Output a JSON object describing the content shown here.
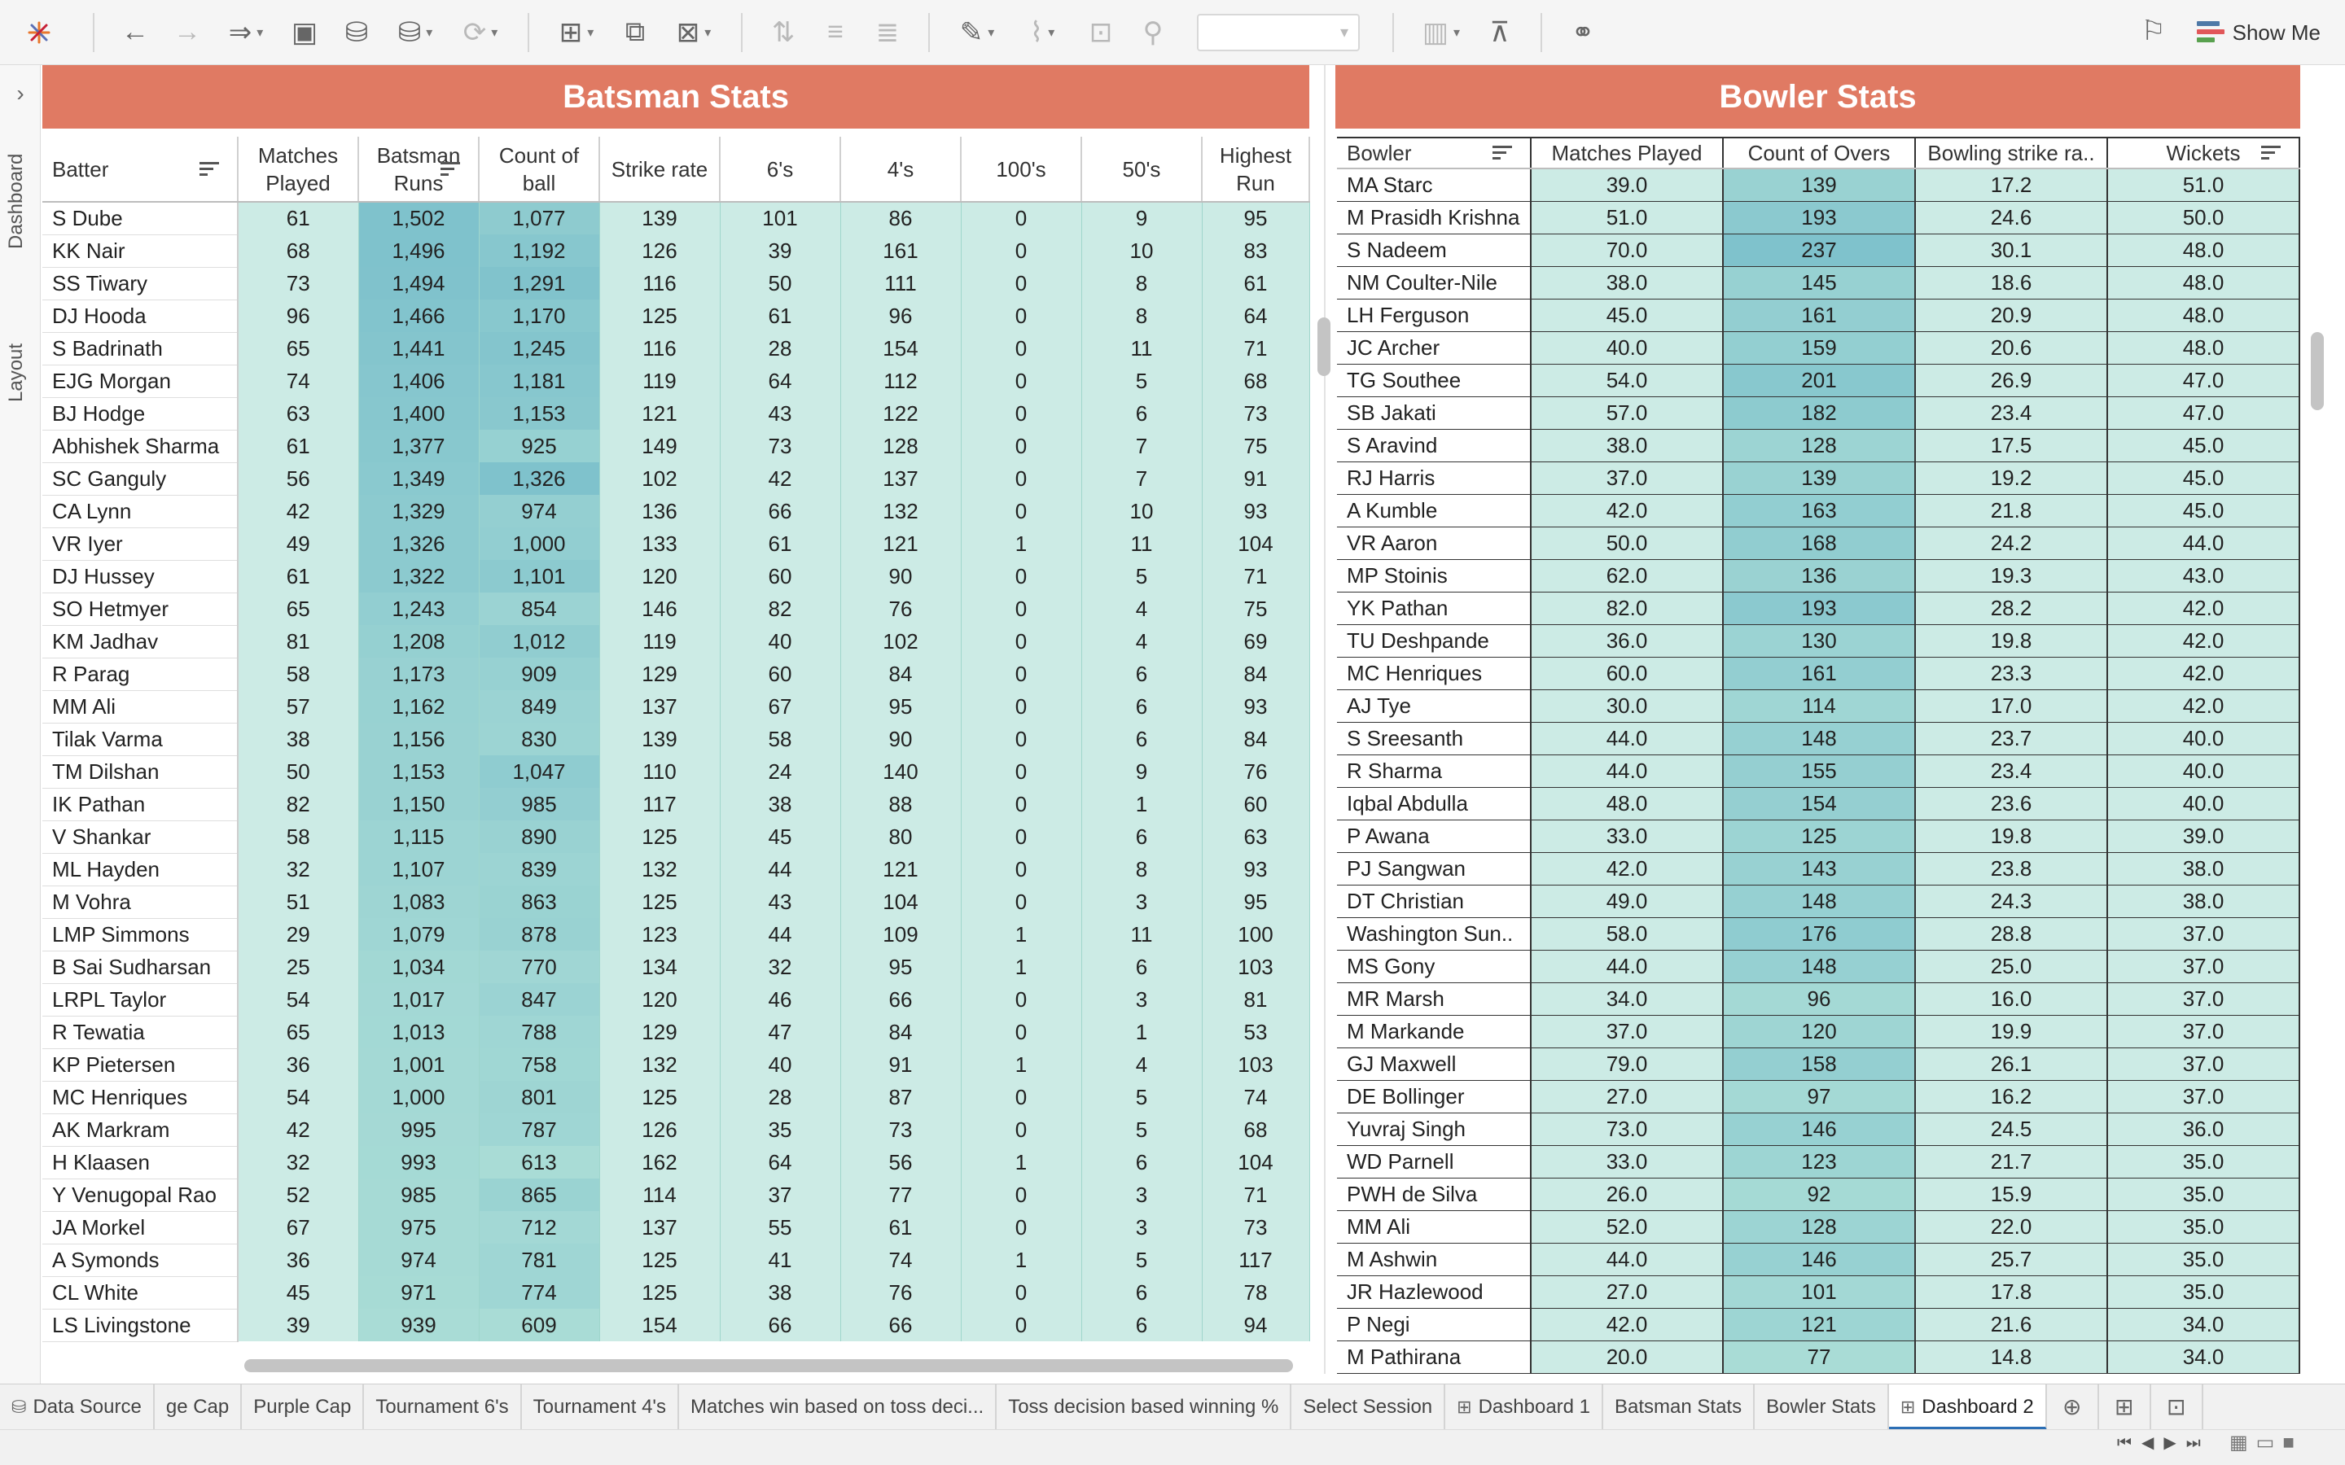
{
  "toolbar": {
    "show_me_label": "Show Me",
    "bar_colors": [
      "#4e79a7",
      "#e15759",
      "#59a14f"
    ]
  },
  "left_rail": {
    "dashboard_label": "Dashboard",
    "layout_label": "Layout"
  },
  "batsman": {
    "title": "Batsman Stats",
    "columns": [
      "Batter",
      "Matches Played",
      "Batsman Runs",
      "Count of ball",
      "Strike rate",
      "6's",
      "4's",
      "100's",
      "50's",
      "Highest Run"
    ],
    "rows": [
      [
        "S Dube",
        "61",
        "1,502",
        "1,077",
        "139",
        "101",
        "86",
        "0",
        "9",
        "95"
      ],
      [
        "KK Nair",
        "68",
        "1,496",
        "1,192",
        "126",
        "39",
        "161",
        "0",
        "10",
        "83"
      ],
      [
        "SS Tiwary",
        "73",
        "1,494",
        "1,291",
        "116",
        "50",
        "111",
        "0",
        "8",
        "61"
      ],
      [
        "DJ Hooda",
        "96",
        "1,466",
        "1,170",
        "125",
        "61",
        "96",
        "0",
        "8",
        "64"
      ],
      [
        "S Badrinath",
        "65",
        "1,441",
        "1,245",
        "116",
        "28",
        "154",
        "0",
        "11",
        "71"
      ],
      [
        "EJG Morgan",
        "74",
        "1,406",
        "1,181",
        "119",
        "64",
        "112",
        "0",
        "5",
        "68"
      ],
      [
        "BJ Hodge",
        "63",
        "1,400",
        "1,153",
        "121",
        "43",
        "122",
        "0",
        "6",
        "73"
      ],
      [
        "Abhishek Sharma",
        "61",
        "1,377",
        "925",
        "149",
        "73",
        "128",
        "0",
        "7",
        "75"
      ],
      [
        "SC Ganguly",
        "56",
        "1,349",
        "1,326",
        "102",
        "42",
        "137",
        "0",
        "7",
        "91"
      ],
      [
        "CA Lynn",
        "42",
        "1,329",
        "974",
        "136",
        "66",
        "132",
        "0",
        "10",
        "93"
      ],
      [
        "VR Iyer",
        "49",
        "1,326",
        "1,000",
        "133",
        "61",
        "121",
        "1",
        "11",
        "104"
      ],
      [
        "DJ Hussey",
        "61",
        "1,322",
        "1,101",
        "120",
        "60",
        "90",
        "0",
        "5",
        "71"
      ],
      [
        "SO Hetmyer",
        "65",
        "1,243",
        "854",
        "146",
        "82",
        "76",
        "0",
        "4",
        "75"
      ],
      [
        "KM Jadhav",
        "81",
        "1,208",
        "1,012",
        "119",
        "40",
        "102",
        "0",
        "4",
        "69"
      ],
      [
        "R Parag",
        "58",
        "1,173",
        "909",
        "129",
        "60",
        "84",
        "0",
        "6",
        "84"
      ],
      [
        "MM Ali",
        "57",
        "1,162",
        "849",
        "137",
        "67",
        "95",
        "0",
        "6",
        "93"
      ],
      [
        "Tilak Varma",
        "38",
        "1,156",
        "830",
        "139",
        "58",
        "90",
        "0",
        "6",
        "84"
      ],
      [
        "TM Dilshan",
        "50",
        "1,153",
        "1,047",
        "110",
        "24",
        "140",
        "0",
        "9",
        "76"
      ],
      [
        "IK Pathan",
        "82",
        "1,150",
        "985",
        "117",
        "38",
        "88",
        "0",
        "1",
        "60"
      ],
      [
        "V Shankar",
        "58",
        "1,115",
        "890",
        "125",
        "45",
        "80",
        "0",
        "6",
        "63"
      ],
      [
        "ML Hayden",
        "32",
        "1,107",
        "839",
        "132",
        "44",
        "121",
        "0",
        "8",
        "93"
      ],
      [
        "M Vohra",
        "51",
        "1,083",
        "863",
        "125",
        "43",
        "104",
        "0",
        "3",
        "95"
      ],
      [
        "LMP Simmons",
        "29",
        "1,079",
        "878",
        "123",
        "44",
        "109",
        "1",
        "11",
        "100"
      ],
      [
        "B Sai Sudharsan",
        "25",
        "1,034",
        "770",
        "134",
        "32",
        "95",
        "1",
        "6",
        "103"
      ],
      [
        "LRPL Taylor",
        "54",
        "1,017",
        "847",
        "120",
        "46",
        "66",
        "0",
        "3",
        "81"
      ],
      [
        "R Tewatia",
        "65",
        "1,013",
        "788",
        "129",
        "47",
        "84",
        "0",
        "1",
        "53"
      ],
      [
        "KP Pietersen",
        "36",
        "1,001",
        "758",
        "132",
        "40",
        "91",
        "1",
        "4",
        "103"
      ],
      [
        "MC Henriques",
        "54",
        "1,000",
        "801",
        "125",
        "28",
        "87",
        "0",
        "5",
        "74"
      ],
      [
        "AK Markram",
        "42",
        "995",
        "787",
        "126",
        "35",
        "73",
        "0",
        "5",
        "68"
      ],
      [
        "H Klaasen",
        "32",
        "993",
        "613",
        "162",
        "64",
        "56",
        "1",
        "6",
        "104"
      ],
      [
        "Y Venugopal Rao",
        "52",
        "985",
        "865",
        "114",
        "37",
        "77",
        "0",
        "3",
        "71"
      ],
      [
        "JA Morkel",
        "67",
        "975",
        "712",
        "137",
        "55",
        "61",
        "0",
        "3",
        "73"
      ],
      [
        "A Symonds",
        "36",
        "974",
        "781",
        "125",
        "41",
        "74",
        "1",
        "5",
        "117"
      ],
      [
        "CL White",
        "45",
        "971",
        "774",
        "125",
        "38",
        "76",
        "0",
        "6",
        "78"
      ],
      [
        "LS Livingstone",
        "39",
        "939",
        "609",
        "154",
        "66",
        "66",
        "0",
        "6",
        "94"
      ]
    ]
  },
  "bowler": {
    "title": "Bowler Stats",
    "columns": [
      "Bowler",
      "Matches Played",
      "Count of Overs",
      "Bowling strike ra..",
      "Wickets"
    ],
    "rows": [
      [
        "MA Starc",
        "39.0",
        "139",
        "17.2",
        "51.0"
      ],
      [
        "M Prasidh Krishna",
        "51.0",
        "193",
        "24.6",
        "50.0"
      ],
      [
        "S Nadeem",
        "70.0",
        "237",
        "30.1",
        "48.0"
      ],
      [
        "NM Coulter-Nile",
        "38.0",
        "145",
        "18.6",
        "48.0"
      ],
      [
        "LH Ferguson",
        "45.0",
        "161",
        "20.9",
        "48.0"
      ],
      [
        "JC Archer",
        "40.0",
        "159",
        "20.6",
        "48.0"
      ],
      [
        "TG Southee",
        "54.0",
        "201",
        "26.9",
        "47.0"
      ],
      [
        "SB Jakati",
        "57.0",
        "182",
        "23.4",
        "47.0"
      ],
      [
        "S Aravind",
        "38.0",
        "128",
        "17.5",
        "45.0"
      ],
      [
        "RJ Harris",
        "37.0",
        "139",
        "19.2",
        "45.0"
      ],
      [
        "A Kumble",
        "42.0",
        "163",
        "21.8",
        "45.0"
      ],
      [
        "VR Aaron",
        "50.0",
        "168",
        "24.2",
        "44.0"
      ],
      [
        "MP Stoinis",
        "62.0",
        "136",
        "19.3",
        "43.0"
      ],
      [
        "YK Pathan",
        "82.0",
        "193",
        "28.2",
        "42.0"
      ],
      [
        "TU Deshpande",
        "36.0",
        "130",
        "19.8",
        "42.0"
      ],
      [
        "MC Henriques",
        "60.0",
        "161",
        "23.3",
        "42.0"
      ],
      [
        "AJ Tye",
        "30.0",
        "114",
        "17.0",
        "42.0"
      ],
      [
        "S Sreesanth",
        "44.0",
        "148",
        "23.7",
        "40.0"
      ],
      [
        "R Sharma",
        "44.0",
        "155",
        "23.4",
        "40.0"
      ],
      [
        "Iqbal Abdulla",
        "48.0",
        "154",
        "23.6",
        "40.0"
      ],
      [
        "P Awana",
        "33.0",
        "125",
        "19.8",
        "39.0"
      ],
      [
        "PJ Sangwan",
        "42.0",
        "143",
        "23.8",
        "38.0"
      ],
      [
        "DT Christian",
        "49.0",
        "148",
        "24.3",
        "38.0"
      ],
      [
        "Washington Sun..",
        "58.0",
        "176",
        "28.8",
        "37.0"
      ],
      [
        "MS Gony",
        "44.0",
        "148",
        "25.0",
        "37.0"
      ],
      [
        "MR Marsh",
        "34.0",
        "96",
        "16.0",
        "37.0"
      ],
      [
        "M Markande",
        "37.0",
        "120",
        "19.9",
        "37.0"
      ],
      [
        "GJ Maxwell",
        "79.0",
        "158",
        "26.1",
        "37.0"
      ],
      [
        "DE Bollinger",
        "27.0",
        "97",
        "16.2",
        "37.0"
      ],
      [
        "Yuvraj Singh",
        "73.0",
        "146",
        "24.5",
        "36.0"
      ],
      [
        "WD Parnell",
        "33.0",
        "123",
        "21.7",
        "35.0"
      ],
      [
        "PWH de Silva",
        "26.0",
        "92",
        "15.9",
        "35.0"
      ],
      [
        "MM Ali",
        "52.0",
        "128",
        "22.0",
        "35.0"
      ],
      [
        "M Ashwin",
        "44.0",
        "146",
        "25.7",
        "35.0"
      ],
      [
        "JR Hazlewood",
        "27.0",
        "101",
        "17.8",
        "35.0"
      ],
      [
        "P Negi",
        "42.0",
        "121",
        "21.6",
        "34.0"
      ],
      [
        "M Pathirana",
        "20.0",
        "77",
        "14.8",
        "34.0"
      ]
    ]
  },
  "colors": {
    "title_bg": "#e07a63",
    "light_teal": "#ccebe5",
    "mid_teal": "#a9dcd6",
    "dark_teal": "#7fc2cc"
  },
  "tabs": [
    {
      "label": "Data Source",
      "icon": "database-icon"
    },
    {
      "label": "ge Cap"
    },
    {
      "label": "Purple Cap"
    },
    {
      "label": "Tournament 6's"
    },
    {
      "label": "Tournament 4's"
    },
    {
      "label": "Matches win based on toss deci..."
    },
    {
      "label": "Toss decision based winning %"
    },
    {
      "label": "Select Session"
    },
    {
      "label": "Dashboard 1",
      "icon": "dashboard-icon"
    },
    {
      "label": "Batsman Stats"
    },
    {
      "label": "Bowler Stats"
    },
    {
      "label": "Dashboard 2",
      "icon": "dashboard-icon",
      "active": true
    }
  ]
}
